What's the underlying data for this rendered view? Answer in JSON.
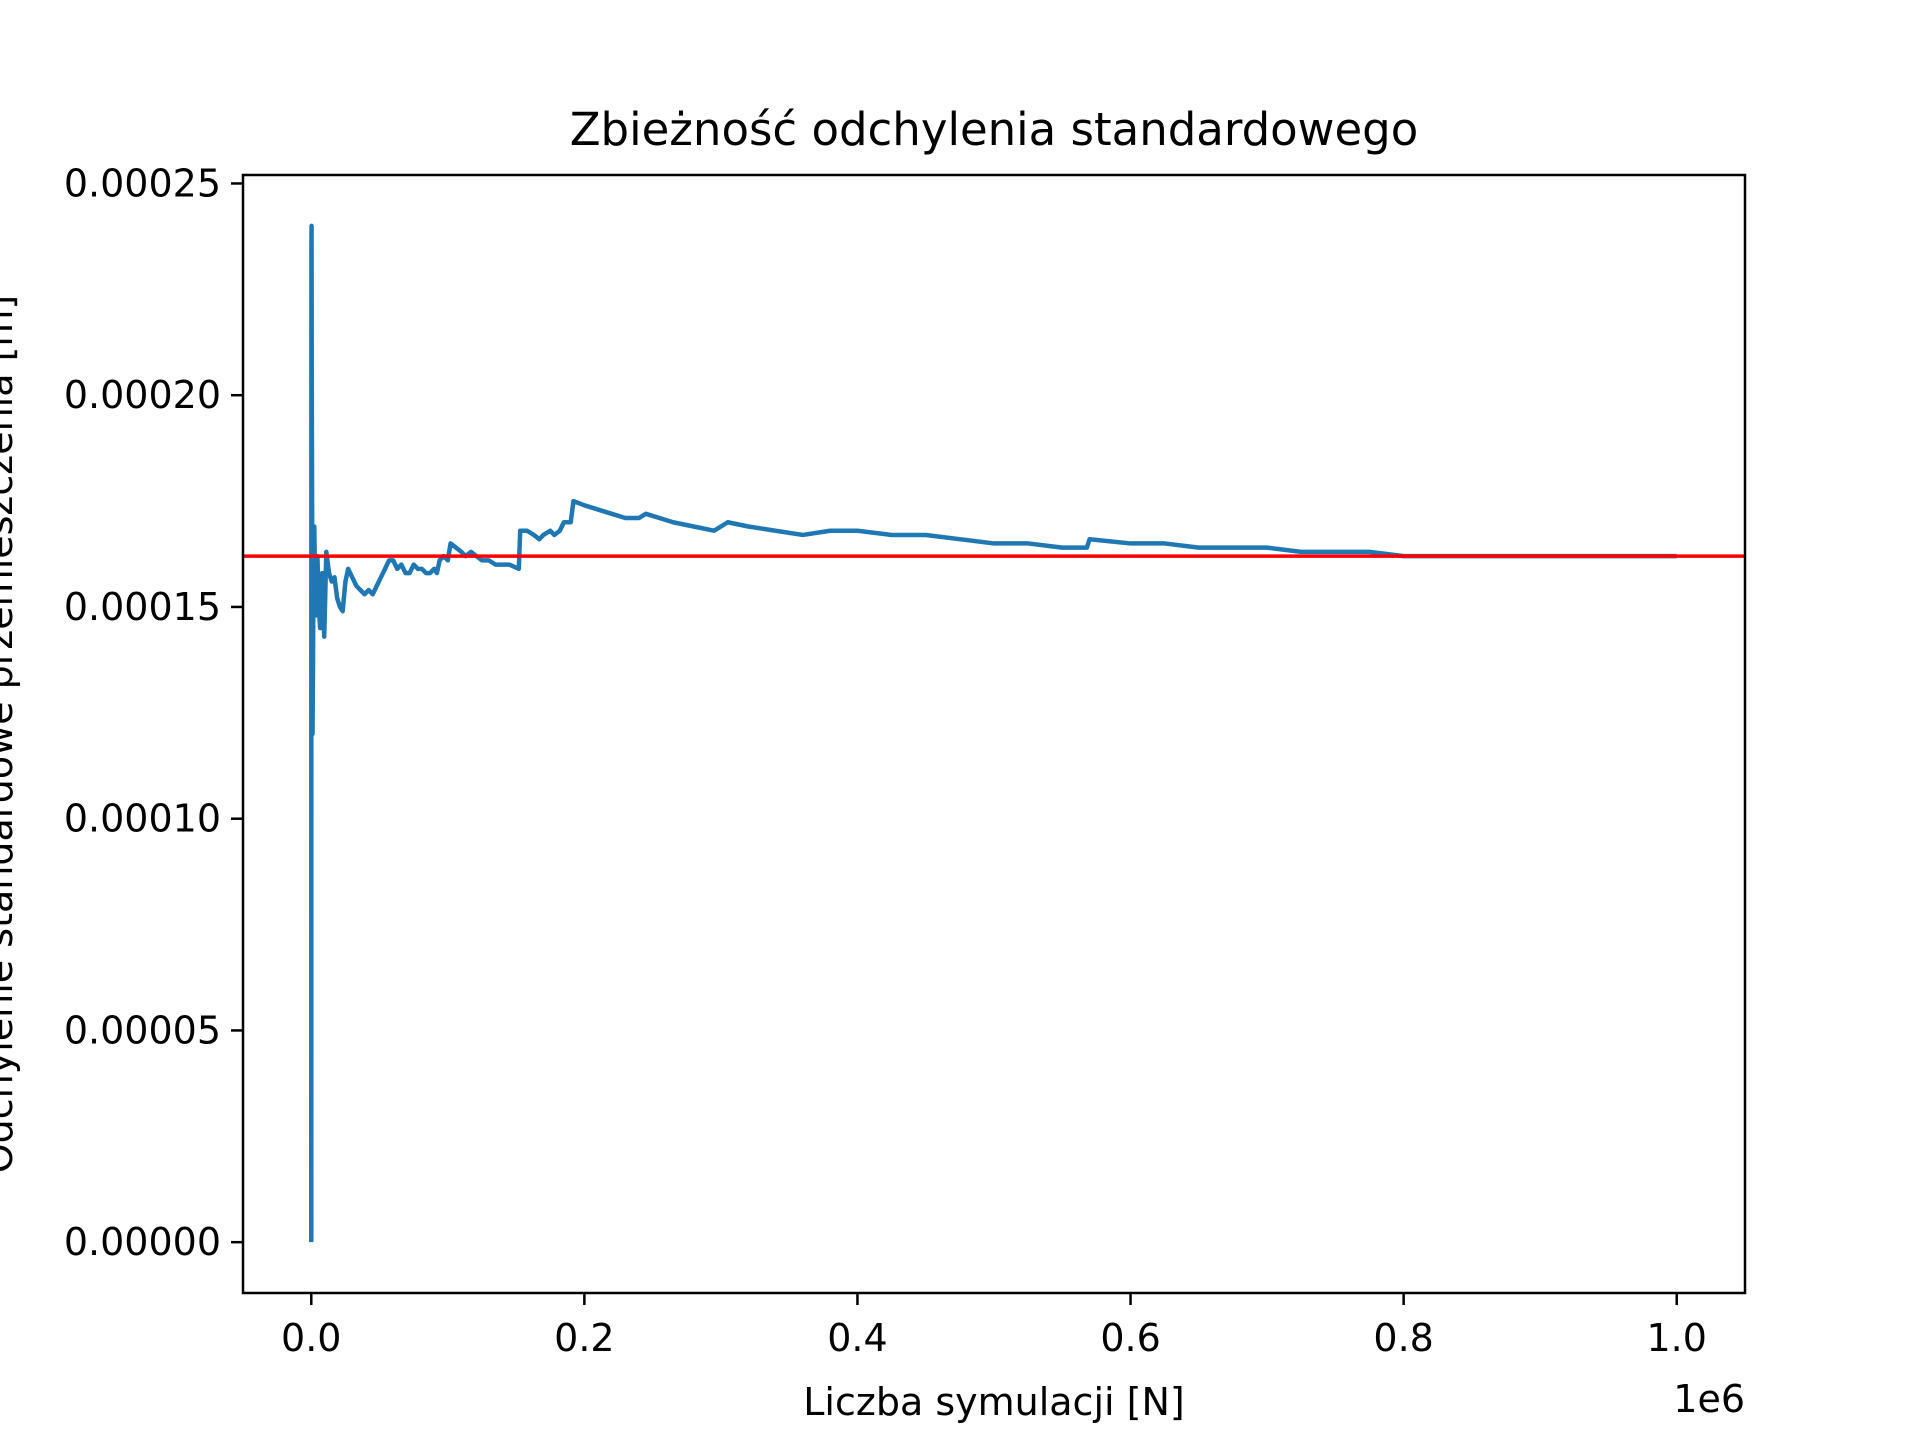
{
  "chart_data": {
    "type": "line",
    "title": "Zbieżność odchylenia standardowego",
    "xlabel": "Liczba symulacji [N]",
    "ylabel": "Odchylenie standardowe przemieszczenia [m]",
    "x_offset_label": "1e6",
    "xlim": [
      -50000,
      1050000
    ],
    "ylim": [
      -1.2e-05,
      0.000252
    ],
    "x_scale": 1000000,
    "xticks": [
      0,
      200000,
      400000,
      600000,
      800000,
      1000000
    ],
    "xtick_labels": [
      "0.0",
      "0.2",
      "0.4",
      "0.6",
      "0.8",
      "1.0"
    ],
    "yticks": [
      0,
      5e-05,
      0.0001,
      0.00015,
      0.0002,
      0.00025
    ],
    "ytick_labels": [
      "0.00000",
      "0.00005",
      "0.00010",
      "0.00015",
      "0.00020",
      "0.00025"
    ],
    "grid": false,
    "colors": {
      "series": "#1f77b4",
      "reference": "#ff0000"
    },
    "series": [
      {
        "values": [
          [
            0,
            0
          ],
          [
            50,
            0.000125
          ],
          [
            100,
            0.000232
          ],
          [
            200,
            0.00024
          ],
          [
            350,
            0.000205
          ],
          [
            600,
            0.000175
          ],
          [
            900,
            0.00012
          ],
          [
            1300,
            0.000138
          ],
          [
            1700,
            0.000165
          ],
          [
            2200,
            0.000169
          ],
          [
            2800,
            0.000155
          ],
          [
            3500,
            0.000148
          ],
          [
            4500,
            0.000162
          ],
          [
            5500,
            0.00015
          ],
          [
            6500,
            0.000145
          ],
          [
            8000,
            0.000158
          ],
          [
            9500,
            0.000143
          ],
          [
            11000,
            0.000163
          ],
          [
            13000,
            0.000158
          ],
          [
            15000,
            0.000156
          ],
          [
            17000,
            0.000157
          ],
          [
            19000,
            0.000152
          ],
          [
            21000,
            0.00015
          ],
          [
            23000,
            0.000149
          ],
          [
            25000,
            0.000156
          ],
          [
            27000,
            0.000159
          ],
          [
            30000,
            0.000157
          ],
          [
            33000,
            0.000155
          ],
          [
            36000,
            0.000154
          ],
          [
            39000,
            0.000153
          ],
          [
            42000,
            0.000154
          ],
          [
            45000,
            0.000153
          ],
          [
            48000,
            0.000155
          ],
          [
            51000,
            0.000157
          ],
          [
            54000,
            0.000159
          ],
          [
            57000,
            0.000161
          ],
          [
            60000,
            0.000161
          ],
          [
            63000,
            0.000159
          ],
          [
            66000,
            0.00016
          ],
          [
            69000,
            0.000158
          ],
          [
            72000,
            0.000158
          ],
          [
            75000,
            0.00016
          ],
          [
            78000,
            0.000159
          ],
          [
            81000,
            0.000159
          ],
          [
            84000,
            0.000158
          ],
          [
            87000,
            0.000158
          ],
          [
            90000,
            0.000159
          ],
          [
            92000,
            0.000158
          ],
          [
            94000,
            0.000161
          ],
          [
            97000,
            0.000162
          ],
          [
            100000,
            0.000161
          ],
          [
            102000,
            0.000165
          ],
          [
            106000,
            0.000164
          ],
          [
            110000,
            0.000163
          ],
          [
            113000,
            0.000162
          ],
          [
            117000,
            0.000163
          ],
          [
            121000,
            0.000162
          ],
          [
            125000,
            0.000161
          ],
          [
            130000,
            0.000161
          ],
          [
            135000,
            0.00016
          ],
          [
            140000,
            0.00016
          ],
          [
            145000,
            0.00016
          ],
          [
            152000,
            0.000159
          ],
          [
            153000,
            0.000168
          ],
          [
            158000,
            0.000168
          ],
          [
            163000,
            0.000167
          ],
          [
            167000,
            0.000166
          ],
          [
            170000,
            0.000167
          ],
          [
            175000,
            0.000168
          ],
          [
            178000,
            0.000167
          ],
          [
            182000,
            0.000168
          ],
          [
            185000,
            0.00017
          ],
          [
            190000,
            0.00017
          ],
          [
            192000,
            0.000175
          ],
          [
            200000,
            0.000174
          ],
          [
            210000,
            0.000173
          ],
          [
            220000,
            0.000172
          ],
          [
            230000,
            0.000171
          ],
          [
            240000,
            0.000171
          ],
          [
            245000,
            0.000172
          ],
          [
            255000,
            0.000171
          ],
          [
            265000,
            0.00017
          ],
          [
            280000,
            0.000169
          ],
          [
            295000,
            0.000168
          ],
          [
            305000,
            0.00017
          ],
          [
            320000,
            0.000169
          ],
          [
            340000,
            0.000168
          ],
          [
            360000,
            0.000167
          ],
          [
            380000,
            0.000168
          ],
          [
            400000,
            0.000168
          ],
          [
            425000,
            0.000167
          ],
          [
            450000,
            0.000167
          ],
          [
            475000,
            0.000166
          ],
          [
            500000,
            0.000165
          ],
          [
            525000,
            0.000165
          ],
          [
            550000,
            0.000164
          ],
          [
            568000,
            0.000164
          ],
          [
            570000,
            0.000166
          ],
          [
            600000,
            0.000165
          ],
          [
            625000,
            0.000165
          ],
          [
            650000,
            0.000164
          ],
          [
            675000,
            0.000164
          ],
          [
            700000,
            0.000164
          ],
          [
            725000,
            0.000163
          ],
          [
            750000,
            0.000163
          ],
          [
            775000,
            0.000163
          ],
          [
            800000,
            0.000162
          ],
          [
            825000,
            0.000162
          ],
          [
            850000,
            0.000162
          ],
          [
            875000,
            0.000162
          ],
          [
            900000,
            0.000162
          ],
          [
            925000,
            0.000162
          ],
          [
            950000,
            0.000162
          ],
          [
            950500,
            0.000162
          ],
          [
            975000,
            0.000162
          ],
          [
            1000000,
            0.000162
          ]
        ]
      },
      {
        "values": [
          [
            -50000,
            0.000162
          ],
          [
            1050000,
            0.000162
          ]
        ]
      }
    ]
  }
}
